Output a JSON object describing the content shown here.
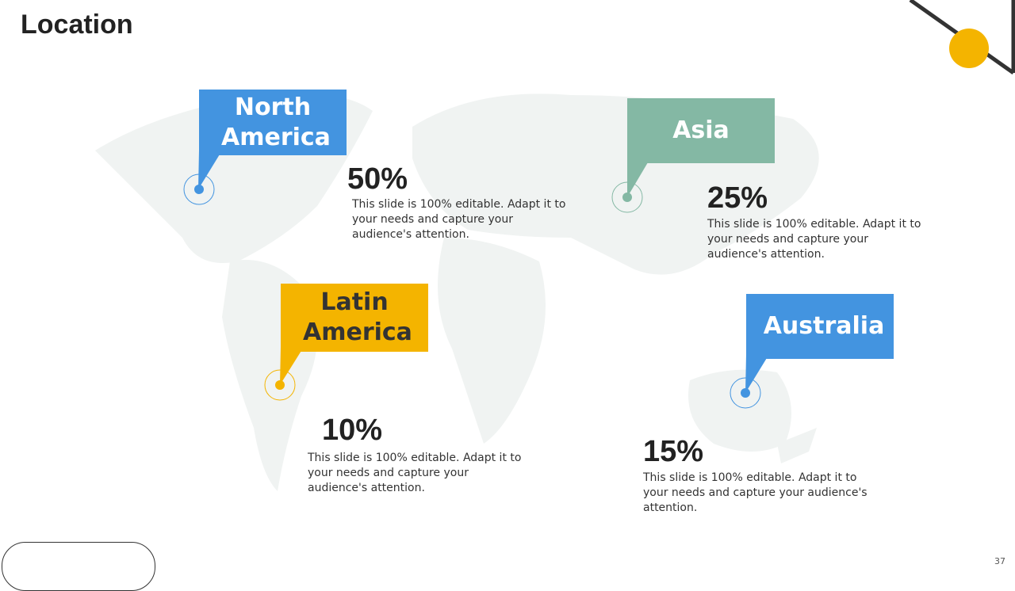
{
  "title": "Location",
  "page_number": "37",
  "colors": {
    "blue": "#4394e0",
    "green": "#84b8a4",
    "yellow": "#f4b400",
    "map": "#f0f3f2"
  },
  "regions": [
    {
      "name": "North America",
      "percent": "50%",
      "description": "This slide is 100% editable. Adapt it to your needs and capture your audience's attention."
    },
    {
      "name": "Asia",
      "percent": "25%",
      "description": "This slide is 100% editable. Adapt it to your needs and capture your audience's attention."
    },
    {
      "name": "Latin America",
      "percent": "10%",
      "description": "This slide is 100% editable. Adapt it to your needs and capture your audience's attention."
    },
    {
      "name": "Australia",
      "percent": "15%",
      "description": "This slide is 100% editable. Adapt it to your needs and capture your audience's attention."
    }
  ]
}
